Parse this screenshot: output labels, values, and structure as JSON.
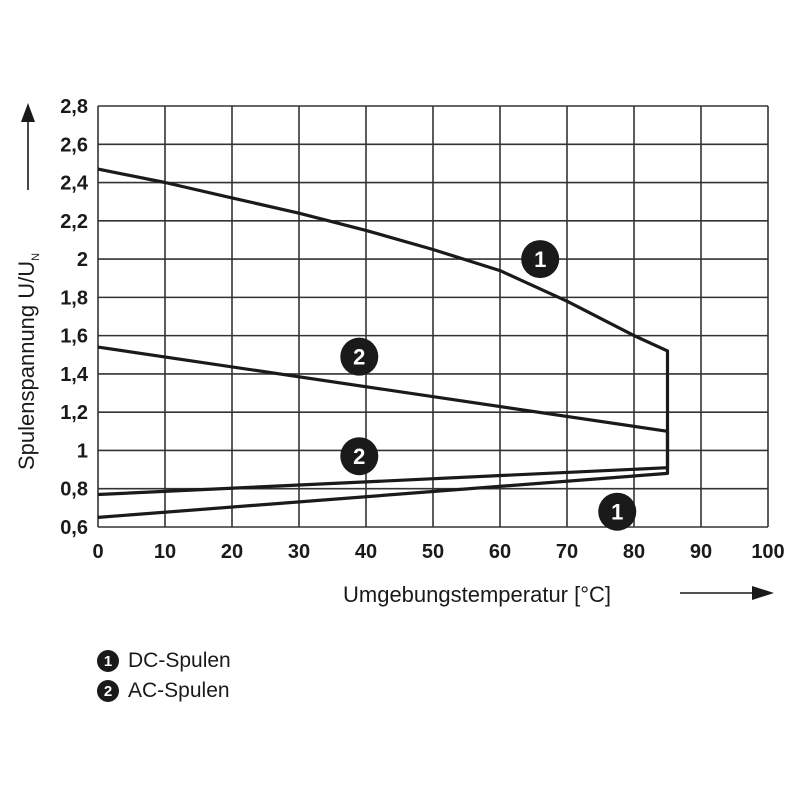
{
  "chart_data": {
    "type": "line",
    "ylabel_main": "Spulenspannung U/U",
    "ylabel_sub": "N",
    "xlabel": "Umgebungstemperatur [°C]",
    "xlim": [
      0,
      100
    ],
    "ylim": [
      0.6,
      2.8
    ],
    "grid": true,
    "x_ticks": [
      "0",
      "10",
      "20",
      "30",
      "40",
      "50",
      "60",
      "70",
      "80",
      "90",
      "100"
    ],
    "y_ticks": [
      "0,6",
      "0,8",
      "1",
      "1,2",
      "1,4",
      "1,6",
      "1,8",
      "2",
      "2,2",
      "2,4",
      "2,6",
      "2,8"
    ],
    "series": [
      {
        "id": "1",
        "name": "DC-Spulen",
        "points": [
          [
            0,
            0.65
          ],
          [
            85,
            0.88
          ],
          [
            85,
            1.52
          ],
          [
            80,
            1.6
          ],
          [
            70,
            1.78
          ],
          [
            60,
            1.94
          ],
          [
            50,
            2.05
          ],
          [
            40,
            2.15
          ],
          [
            30,
            2.24
          ],
          [
            20,
            2.32
          ],
          [
            10,
            2.4
          ],
          [
            0,
            2.47
          ]
        ]
      },
      {
        "id": "2",
        "name": "AC-Spulen",
        "points": [
          [
            0,
            0.77
          ],
          [
            85,
            0.91
          ],
          [
            85,
            1.1
          ],
          [
            0,
            1.54
          ]
        ]
      }
    ],
    "annotations": [
      {
        "label": "1",
        "x": 66,
        "y": 2.0
      },
      {
        "label": "2",
        "x": 39,
        "y": 1.49
      },
      {
        "label": "2",
        "x": 39,
        "y": 0.97
      },
      {
        "label": "1",
        "x": 77.5,
        "y": 0.68
      }
    ]
  },
  "legend": [
    {
      "badge": "1",
      "label": "DC-Spulen"
    },
    {
      "badge": "2",
      "label": "AC-Spulen"
    }
  ]
}
